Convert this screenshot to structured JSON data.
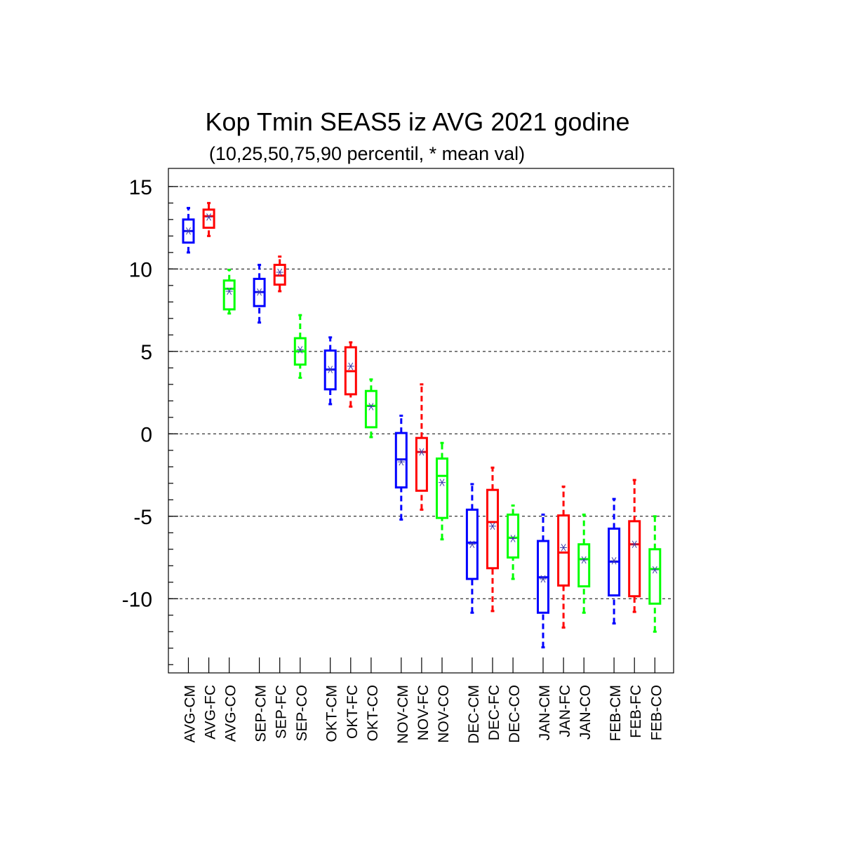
{
  "chart_data": {
    "type": "boxplot",
    "title": "Kop Tmin SEAS5 iz AVG 2021 godine",
    "subtitle": "(10,25,50,75,90 percentil, * mean val)",
    "xlabel": "",
    "ylabel": "",
    "ylim": [
      -14.5,
      16.1
    ],
    "yticks_major": [
      15,
      10,
      5,
      0,
      -5,
      -10
    ],
    "yticks_minor": [
      15,
      14,
      13,
      12,
      11,
      10,
      9,
      8,
      7,
      6,
      5,
      4,
      3,
      2,
      1,
      0,
      -1,
      -2,
      -3,
      -4,
      -5,
      -6,
      -7,
      -8,
      -9,
      -10,
      -11,
      -12,
      -13,
      -14
    ],
    "grid": "dashed horizontal at major ticks",
    "series_colors": {
      "CM": "#0000ff",
      "FC": "#ff0000",
      "CO": "#00ff00"
    },
    "categories": [
      "AVG-CM",
      "AVG-FC",
      "AVG-CO",
      "SEP-CM",
      "SEP-FC",
      "SEP-CO",
      "OKT-CM",
      "OKT-FC",
      "OKT-CO",
      "NOV-CM",
      "NOV-FC",
      "NOV-CO",
      "DEC-CM",
      "DEC-FC",
      "DEC-CO",
      "JAN-CM",
      "JAN-FC",
      "JAN-CO",
      "FEB-CM",
      "FEB-FC",
      "FEB-CO"
    ],
    "boxes": [
      {
        "p10": 11.0,
        "p25": 11.6,
        "p50": 12.3,
        "p75": 13.0,
        "p90": 13.7,
        "mean": 12.3
      },
      {
        "p10": 12.0,
        "p25": 12.5,
        "p50": 13.2,
        "p75": 13.6,
        "p90": 14.0,
        "mean": 13.15
      },
      {
        "p10": 7.3,
        "p25": 7.55,
        "p50": 8.8,
        "p75": 9.3,
        "p90": 9.95,
        "mean": 8.65
      },
      {
        "p10": 6.75,
        "p25": 7.75,
        "p50": 8.6,
        "p75": 9.4,
        "p90": 10.25,
        "mean": 8.6
      },
      {
        "p10": 8.65,
        "p25": 9.05,
        "p50": 9.6,
        "p75": 10.25,
        "p90": 10.75,
        "mean": 9.8
      },
      {
        "p10": 3.4,
        "p25": 4.2,
        "p50": 5.0,
        "p75": 5.8,
        "p90": 7.2,
        "mean": 5.1
      },
      {
        "p10": 1.8,
        "p25": 2.7,
        "p50": 3.9,
        "p75": 5.05,
        "p90": 5.85,
        "mean": 3.9
      },
      {
        "p10": 1.65,
        "p25": 2.4,
        "p50": 3.8,
        "p75": 5.25,
        "p90": 5.55,
        "mean": 4.1
      },
      {
        "p10": -0.2,
        "p25": 0.4,
        "p50": 1.7,
        "p75": 2.6,
        "p90": 3.3,
        "mean": 1.65
      },
      {
        "p10": -5.2,
        "p25": -3.25,
        "p50": -1.55,
        "p75": 0.05,
        "p90": 1.1,
        "mean": -1.7
      },
      {
        "p10": -4.6,
        "p25": -3.45,
        "p50": -1.1,
        "p75": -0.25,
        "p90": 3.0,
        "mean": -1.1
      },
      {
        "p10": -6.4,
        "p25": -5.1,
        "p50": -2.55,
        "p75": -1.5,
        "p90": -0.55,
        "mean": -2.95
      },
      {
        "p10": -10.85,
        "p25": -8.8,
        "p50": -6.6,
        "p75": -4.6,
        "p90": -3.05,
        "mean": -6.7
      },
      {
        "p10": -10.75,
        "p25": -8.15,
        "p50": -5.35,
        "p75": -3.4,
        "p90": -2.05,
        "mean": -5.6
      },
      {
        "p10": -8.8,
        "p25": -7.5,
        "p50": -6.3,
        "p75": -4.9,
        "p90": -4.35,
        "mean": -6.35
      },
      {
        "p10": -12.95,
        "p25": -10.85,
        "p50": -8.7,
        "p75": -6.5,
        "p90": -4.9,
        "mean": -8.8
      },
      {
        "p10": -11.75,
        "p25": -9.2,
        "p50": -7.2,
        "p75": -4.95,
        "p90": -3.2,
        "mean": -6.9
      },
      {
        "p10": -10.85,
        "p25": -9.25,
        "p50": -7.6,
        "p75": -6.7,
        "p90": -4.9,
        "mean": -7.65
      },
      {
        "p10": -11.5,
        "p25": -9.8,
        "p50": -7.75,
        "p75": -5.75,
        "p90": -3.95,
        "mean": -7.7
      },
      {
        "p10": -10.8,
        "p25": -9.85,
        "p50": -6.7,
        "p75": -5.3,
        "p90": -2.8,
        "mean": -6.7
      },
      {
        "p10": -12.0,
        "p25": -10.3,
        "p50": -8.2,
        "p75": -7.0,
        "p90": -5.0,
        "mean": -8.25
      }
    ]
  }
}
